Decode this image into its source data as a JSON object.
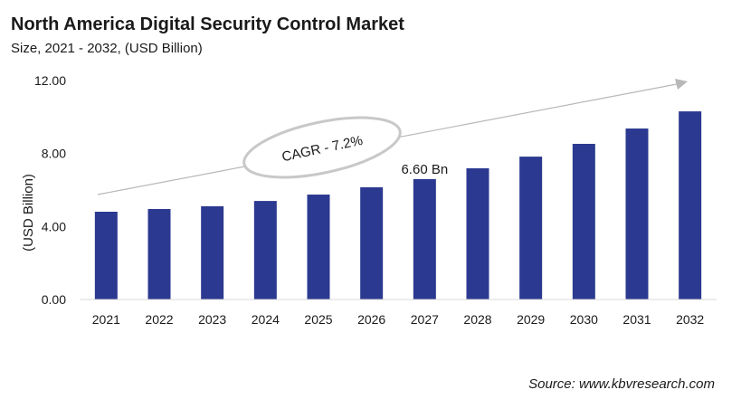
{
  "chart_data": {
    "type": "bar",
    "title": "North America Digital Security Control Market",
    "subtitle": "Size, 2021 - 2032, (USD Billion)",
    "xlabel": "",
    "ylabel": "(USD Billion)",
    "categories": [
      "2021",
      "2022",
      "2023",
      "2024",
      "2025",
      "2026",
      "2027",
      "2028",
      "2029",
      "2030",
      "2031",
      "2032"
    ],
    "values": [
      4.81,
      4.96,
      5.11,
      5.4,
      5.75,
      6.15,
      6.6,
      7.19,
      7.83,
      8.53,
      9.37,
      10.31
    ],
    "ylim": [
      0,
      12
    ],
    "yticks": [
      "0.00",
      "4.00",
      "8.00",
      "12.00"
    ],
    "data_labels": [
      {
        "category": "2027",
        "text": "6.60 Bn"
      }
    ],
    "annotation": "CAGR - 7.2%",
    "grid": false,
    "bar_color": "#2b3990"
  },
  "source": "Source: www.kbvresearch.com"
}
